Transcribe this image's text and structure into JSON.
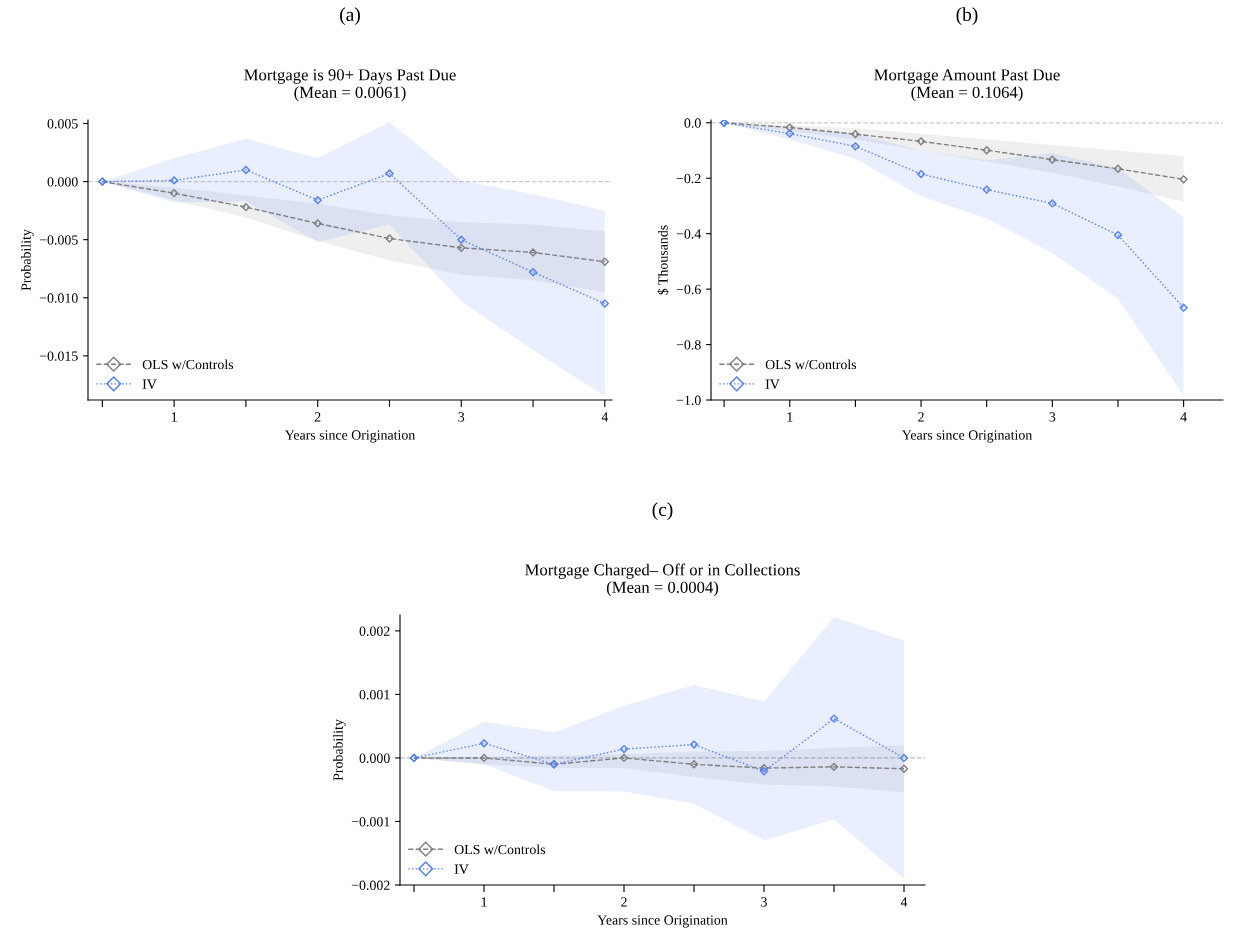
{
  "chart_data": [
    {
      "type": "line",
      "annotations": [
        "(a)"
      ],
      "title": "Mortgage is 90+ Days Past Due\n(Mean = 0.0061)",
      "xlabel": "Years since Origination",
      "ylabel": "Probability",
      "x": [
        0.5,
        1,
        1.5,
        2,
        2.5,
        3,
        3.5,
        4
      ],
      "xlim": [
        0.4,
        4.05
      ],
      "xticks": [
        {
          "value": 0.5,
          "label": null
        },
        1,
        {
          "value": 1.5,
          "label": null
        },
        2,
        {
          "value": 2.5,
          "label": null
        },
        3,
        {
          "value": 3.5,
          "label": null
        },
        4
      ],
      "ylim": [
        -0.0188,
        0.0053
      ],
      "yticks": [
        {
          "value": -0.015,
          "label": "−0.015"
        },
        {
          "value": -0.01,
          "label": "−0.010"
        },
        {
          "value": -0.005,
          "label": "−0.005"
        },
        {
          "value": 0,
          "label": "0.000"
        },
        0.005
      ],
      "ref_lines": [
        {
          "axis": "y",
          "value": 0,
          "color": "#cccccc",
          "line_style": "dashed"
        }
      ],
      "legend": "bottom left",
      "grid": false,
      "series": [
        {
          "name": "OLS w/Controls",
          "color": "#7f7f7f",
          "marker": "diamond",
          "line_style": "dashed",
          "values": [
            0,
            -0.001,
            -0.0022,
            -0.0036,
            -0.0049,
            -0.0057,
            -0.0061,
            -0.0069
          ],
          "lower": [
            0,
            -0.0016,
            -0.0031,
            -0.0051,
            -0.0068,
            -0.008,
            -0.0085,
            -0.0095
          ],
          "upper": [
            0,
            -0.0005,
            -0.0012,
            -0.0019,
            -0.0029,
            -0.0035,
            -0.0037,
            -0.0043
          ]
        },
        {
          "name": "IV",
          "color": "#4d7cff",
          "marker": "diamond",
          "line_style": "dotted",
          "values": [
            0,
            0.0001,
            0.001,
            -0.0016,
            0.0007,
            -0.005,
            -0.0078,
            -0.0105
          ],
          "lower": [
            0,
            -0.0018,
            -0.0017,
            -0.0052,
            -0.0037,
            -0.0103,
            -0.0145,
            -0.0185
          ],
          "upper": [
            0,
            0.002,
            0.0037,
            0.002,
            0.0051,
            0.0001,
            -0.0011,
            -0.0025
          ]
        }
      ]
    },
    {
      "type": "line",
      "annotations": [
        "(b)"
      ],
      "title": "Mortgage Amount Past Due\n(Mean = 0.1064)",
      "xlabel": "Years since Origination",
      "ylabel": "$ Thousands",
      "x": [
        0.5,
        1,
        1.5,
        2,
        2.5,
        3,
        3.5,
        4
      ],
      "xlim": [
        0.4,
        4.3
      ],
      "xticks": [
        {
          "value": 0.5,
          "label": null
        },
        1,
        {
          "value": 1.5,
          "label": null
        },
        2,
        {
          "value": 2.5,
          "label": null
        },
        3,
        {
          "value": 3.5,
          "label": null
        },
        4
      ],
      "ylim": [
        -1.0,
        0.01
      ],
      "yticks": [
        {
          "value": -1.0,
          "label": "−1.0"
        },
        {
          "value": -0.8,
          "label": "−0.8"
        },
        {
          "value": -0.6,
          "label": "−0.6"
        },
        {
          "value": -0.4,
          "label": "−0.4"
        },
        {
          "value": -0.2,
          "label": "−0.2"
        },
        {
          "value": 0,
          "label": "0.0"
        }
      ],
      "ref_lines": [
        {
          "axis": "y",
          "value": 0,
          "color": "#cccccc",
          "line_style": "dashed"
        }
      ],
      "legend": "bottom left",
      "grid": false,
      "series": [
        {
          "name": "OLS w/Controls",
          "color": "#7f7f7f",
          "marker": "diamond",
          "line_style": "dashed",
          "values": [
            0,
            -0.017,
            -0.041,
            -0.067,
            -0.099,
            -0.133,
            -0.166,
            -0.204
          ],
          "lower": [
            0,
            -0.03,
            -0.06,
            -0.1,
            -0.14,
            -0.18,
            -0.23,
            -0.285
          ],
          "upper": [
            0,
            -0.01,
            -0.02,
            -0.04,
            -0.06,
            -0.08,
            -0.1,
            -0.12
          ]
        },
        {
          "name": "IV",
          "color": "#4d7cff",
          "marker": "diamond",
          "line_style": "dotted",
          "values": [
            0,
            -0.039,
            -0.085,
            -0.185,
            -0.241,
            -0.291,
            -0.405,
            -0.667
          ],
          "lower": [
            0,
            -0.06,
            -0.13,
            -0.265,
            -0.345,
            -0.47,
            -0.635,
            -0.985
          ],
          "upper": [
            0,
            -0.02,
            -0.04,
            -0.1,
            -0.135,
            -0.11,
            -0.165,
            -0.34
          ]
        }
      ]
    },
    {
      "type": "line",
      "annotations": [
        "(c)"
      ],
      "title": "Mortgage Charged– Off or in Collections\n(Mean = 0.0004)",
      "xlabel": "Years since Origination",
      "ylabel": "Probability",
      "x": [
        0.5,
        1,
        1.5,
        2,
        2.5,
        3,
        3.5,
        4
      ],
      "xlim": [
        0.4,
        4.15
      ],
      "xticks": [
        {
          "value": 0.5,
          "label": null
        },
        1,
        {
          "value": 1.5,
          "label": null
        },
        2,
        {
          "value": 2.5,
          "label": null
        },
        3,
        {
          "value": 3.5,
          "label": null
        },
        4
      ],
      "ylim": [
        -0.002,
        0.00225
      ],
      "yticks": [
        {
          "value": -0.002,
          "label": "−0.002"
        },
        {
          "value": -0.001,
          "label": "−0.001"
        },
        {
          "value": 0,
          "label": "0.000"
        },
        0.001,
        0.002
      ],
      "ref_lines": [
        {
          "axis": "y",
          "value": 0,
          "color": "#bbbbbb",
          "line_style": "dashed"
        }
      ],
      "legend": "bottom left",
      "grid": false,
      "series": [
        {
          "name": "OLS w/Controls",
          "color": "#7f7f7f",
          "marker": "diamond",
          "line_style": "dashed",
          "values": [
            0,
            -0.0,
            -0.0001,
            -0.0,
            -0.0001,
            -0.00016,
            -0.00014,
            -0.00017
          ],
          "lower": [
            0,
            -0.0001,
            -0.00016,
            -0.00016,
            -0.0003,
            -0.00042,
            -0.00045,
            -0.00054
          ],
          "upper": [
            0,
            2e-05,
            4e-05,
            6e-05,
            0.0001,
            0.00011,
            0.00016,
            0.0002
          ]
        },
        {
          "name": "IV",
          "color": "#4d7cff",
          "marker": "diamond",
          "line_style": "dotted",
          "values": [
            0,
            0.00023,
            -0.0001,
            0.00014,
            0.00021,
            -0.00021,
            0.00062,
            0
          ],
          "lower": [
            0,
            -0.0001,
            -0.00052,
            -0.00053,
            -0.00072,
            -0.0013,
            -0.00097,
            -0.0019
          ],
          "upper": [
            0,
            0.00057,
            0.0004,
            0.00082,
            0.00115,
            0.00089,
            0.00222,
            0.00185
          ]
        }
      ]
    }
  ]
}
